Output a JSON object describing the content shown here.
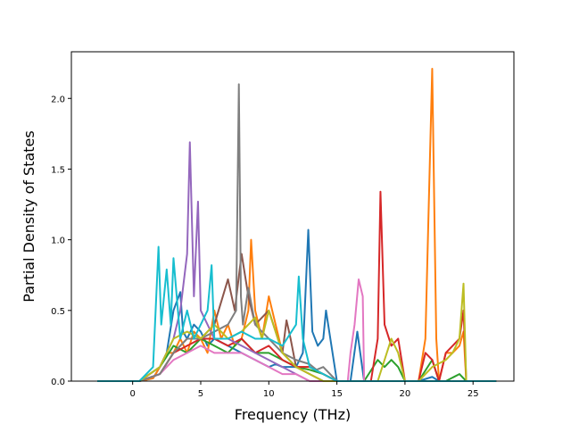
{
  "chart_data": {
    "type": "line",
    "title": "",
    "xlabel": "Frequency (THz)",
    "ylabel": "Partial Density of States",
    "xlim": [
      -4.5,
      28.0
    ],
    "ylim": [
      0,
      2.33
    ],
    "xticks": [
      0,
      5,
      10,
      15,
      20,
      25
    ],
    "yticks": [
      0.0,
      0.5,
      1.0,
      1.5,
      2.0
    ],
    "xtick_labels": [
      "0",
      "5",
      "10",
      "15",
      "20",
      "25"
    ],
    "ytick_labels": [
      "0.0",
      "0.5",
      "1.0",
      "1.5",
      "2.0"
    ],
    "grid": false,
    "legend": "none",
    "series": [
      {
        "color": "#1f77b4",
        "x": [
          -2.6,
          0.5,
          1.5,
          2.0,
          2.5,
          3.0,
          3.5,
          3.7,
          4.0,
          4.5,
          5.0,
          5.5,
          6.0,
          7.0,
          8.0,
          9.0,
          10.0,
          10.5,
          11.0,
          12.0,
          12.5,
          12.9,
          13.2,
          13.6,
          14.0,
          14.2,
          15.0,
          16.0,
          16.5,
          17.0,
          17.5,
          18.0,
          18.5,
          19.0,
          20.0,
          21.0,
          22.0,
          22.5,
          23.0,
          24.0,
          25.0,
          26.7
        ],
        "y": [
          0,
          0,
          0.02,
          0.1,
          0.2,
          0.5,
          0.63,
          0.35,
          0.3,
          0.4,
          0.35,
          0.25,
          0.3,
          0.25,
          0.2,
          0.15,
          0.1,
          0.12,
          0.1,
          0.1,
          0.2,
          1.07,
          0.35,
          0.25,
          0.3,
          0.5,
          0,
          0,
          0.35,
          0,
          0,
          0,
          0,
          0,
          0,
          0,
          0.03,
          0,
          0,
          0,
          0,
          0
        ]
      },
      {
        "color": "#ff7f0e",
        "x": [
          -2.6,
          0.5,
          1.5,
          2.0,
          2.5,
          3.0,
          3.5,
          4.0,
          4.5,
          5.0,
          5.5,
          6.0,
          6.5,
          7.0,
          7.5,
          8.0,
          8.5,
          8.7,
          9.0,
          9.5,
          10.0,
          11.0,
          12.0,
          13.0,
          14.0,
          15.0,
          16.0,
          17.0,
          18.0,
          19.0,
          20.0,
          21.0,
          21.5,
          22.0,
          22.3,
          22.5,
          23.0,
          23.5,
          24.0,
          24.3,
          24.5,
          26.7
        ],
        "y": [
          0,
          0,
          0.02,
          0.1,
          0.2,
          0.2,
          0.3,
          0.2,
          0.35,
          0.3,
          0.2,
          0.5,
          0.3,
          0.4,
          0.25,
          0.3,
          0.5,
          1.0,
          0.5,
          0.3,
          0.6,
          0.2,
          0.1,
          0.1,
          0.05,
          0,
          0,
          0,
          0,
          0,
          0,
          0,
          0.3,
          2.21,
          0.3,
          0,
          0.2,
          0.2,
          0.25,
          0.35,
          0,
          0
        ]
      },
      {
        "color": "#2ca02c",
        "x": [
          -2.6,
          0.5,
          2.0,
          3.0,
          4.0,
          5.0,
          6.0,
          7.0,
          8.0,
          9.0,
          10.0,
          11.0,
          12.0,
          13.0,
          14.0,
          15.0,
          16.0,
          17.0,
          18.0,
          18.5,
          19.0,
          19.5,
          20.0,
          21.0,
          22.0,
          22.5,
          23.0,
          24.0,
          24.5,
          26.7
        ],
        "y": [
          0,
          0,
          0.1,
          0.25,
          0.2,
          0.3,
          0.25,
          0.2,
          0.3,
          0.2,
          0.2,
          0.15,
          0.1,
          0.08,
          0.05,
          0,
          0,
          0,
          0.15,
          0.1,
          0.15,
          0.1,
          0,
          0,
          0.15,
          0,
          0,
          0.05,
          0,
          0
        ]
      },
      {
        "color": "#d62728",
        "x": [
          -2.6,
          0.5,
          2.0,
          3.0,
          4.0,
          5.0,
          6.0,
          7.0,
          8.0,
          9.0,
          10.0,
          11.0,
          12.0,
          13.0,
          14.0,
          15.0,
          16.0,
          17.0,
          17.5,
          18.0,
          18.2,
          18.5,
          19.0,
          19.5,
          20.0,
          21.0,
          21.5,
          22.0,
          22.5,
          23.0,
          23.5,
          24.0,
          24.3,
          24.5,
          26.7
        ],
        "y": [
          0,
          0,
          0.05,
          0.2,
          0.25,
          0.3,
          0.3,
          0.25,
          0.3,
          0.2,
          0.25,
          0.15,
          0.1,
          0.1,
          0.05,
          0,
          0,
          0,
          0,
          0.3,
          1.34,
          0.4,
          0.25,
          0.3,
          0,
          0,
          0.2,
          0.15,
          0,
          0.2,
          0.25,
          0.3,
          0.5,
          0,
          0
        ]
      },
      {
        "color": "#9467bd",
        "x": [
          -2.6,
          0.5,
          2.0,
          3.0,
          3.5,
          4.0,
          4.2,
          4.5,
          4.8,
          5.0,
          5.5,
          6.0,
          7.0,
          8.0,
          9.0,
          10.0,
          11.0,
          12.0,
          13.0,
          14.0,
          15.0,
          26.7
        ],
        "y": [
          0,
          0,
          0.1,
          0.3,
          0.5,
          0.9,
          1.69,
          0.6,
          1.27,
          0.5,
          0.4,
          0.3,
          0.3,
          0.25,
          0.2,
          0.15,
          0.1,
          0.05,
          0,
          0,
          0,
          0
        ]
      },
      {
        "color": "#8c564b",
        "x": [
          -2.6,
          0.5,
          2.0,
          3.0,
          4.0,
          5.0,
          6.0,
          7.0,
          7.5,
          8.0,
          8.5,
          9.0,
          10.0,
          11.0,
          11.3,
          11.6,
          12.0,
          13.0,
          14.0,
          15.0,
          26.7
        ],
        "y": [
          0,
          0,
          0.05,
          0.2,
          0.3,
          0.3,
          0.4,
          0.72,
          0.5,
          0.9,
          0.6,
          0.4,
          0.5,
          0.2,
          0.43,
          0.3,
          0.1,
          0.05,
          0,
          0,
          0
        ]
      },
      {
        "color": "#e377c2",
        "x": [
          -2.6,
          0.5,
          2.0,
          3.0,
          4.0,
          5.0,
          6.0,
          7.0,
          8.0,
          9.0,
          10.0,
          11.0,
          12.0,
          13.0,
          14.0,
          15.0,
          15.8,
          16.0,
          16.3,
          16.6,
          16.9,
          17.0,
          26.7
        ],
        "y": [
          0,
          0,
          0.05,
          0.15,
          0.2,
          0.25,
          0.2,
          0.2,
          0.2,
          0.15,
          0.1,
          0.05,
          0.05,
          0,
          0,
          0,
          0,
          0.2,
          0.4,
          0.72,
          0.6,
          0,
          0
        ]
      },
      {
        "color": "#7f7f7f",
        "x": [
          -2.6,
          0.5,
          2.0,
          3.0,
          4.0,
          5.0,
          6.0,
          7.0,
          7.6,
          7.8,
          7.95,
          8.1,
          8.5,
          9.0,
          10.0,
          11.0,
          12.0,
          13.0,
          13.5,
          14.0,
          15.0,
          26.7
        ],
        "y": [
          0,
          0,
          0.05,
          0.2,
          0.3,
          0.3,
          0.35,
          0.4,
          0.5,
          2.1,
          0.6,
          0.4,
          0.66,
          0.4,
          0.3,
          0.2,
          0.15,
          0.12,
          0.08,
          0.1,
          0,
          0
        ]
      },
      {
        "color": "#bcbd22",
        "x": [
          -2.6,
          0.5,
          2.0,
          3.0,
          4.0,
          5.0,
          6.0,
          7.0,
          8.0,
          9.0,
          9.5,
          10.0,
          11.0,
          12.0,
          13.0,
          14.0,
          15.0,
          18.0,
          19.0,
          19.5,
          20.0,
          21.0,
          22.0,
          23.0,
          23.5,
          24.0,
          24.3,
          24.5,
          26.7
        ],
        "y": [
          0,
          0,
          0.1,
          0.3,
          0.35,
          0.3,
          0.4,
          0.3,
          0.35,
          0.45,
          0.3,
          0.5,
          0.2,
          0.1,
          0.05,
          0,
          0,
          0,
          0.3,
          0.2,
          0,
          0,
          0.1,
          0.15,
          0.2,
          0.3,
          0.69,
          0,
          0
        ]
      },
      {
        "color": "#17becf",
        "x": [
          -2.6,
          0.5,
          1.5,
          1.9,
          2.1,
          2.5,
          2.8,
          3.0,
          3.5,
          4.0,
          4.5,
          5.0,
          5.5,
          5.8,
          6.0,
          7.0,
          8.0,
          9.0,
          10.0,
          11.0,
          12.0,
          12.2,
          12.5,
          13.0,
          14.0,
          15.0,
          26.7
        ],
        "y": [
          0,
          0,
          0.1,
          0.95,
          0.4,
          0.79,
          0.4,
          0.87,
          0.3,
          0.5,
          0.3,
          0.4,
          0.5,
          0.82,
          0.3,
          0.3,
          0.35,
          0.3,
          0.3,
          0.25,
          0.4,
          0.74,
          0.3,
          0.1,
          0.05,
          0,
          0
        ]
      }
    ]
  }
}
